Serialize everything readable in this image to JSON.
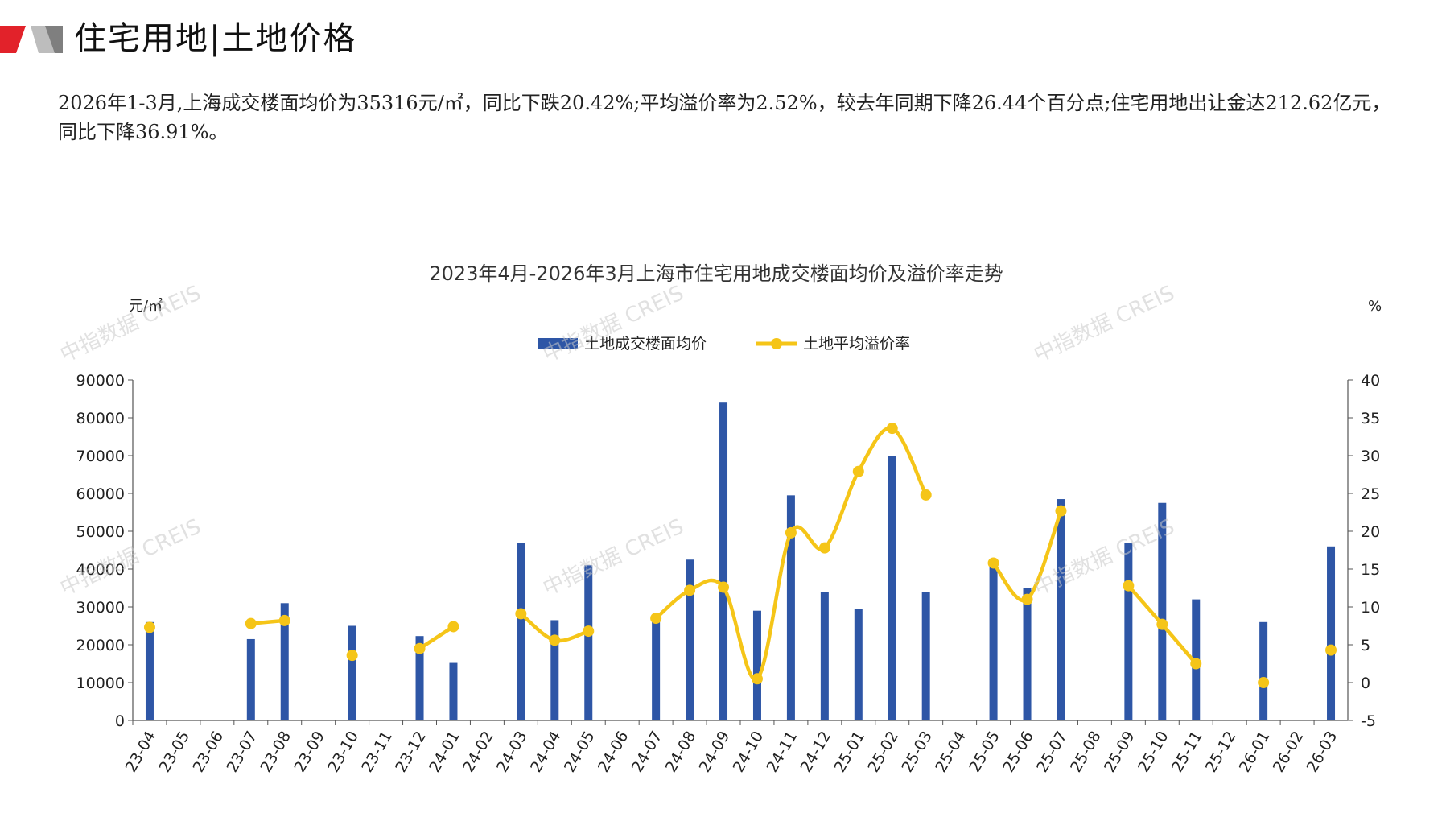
{
  "header": {
    "title": "住宅用地|土地价格"
  },
  "summary": {
    "text": "2026年1-3月,上海成交楼面均价为35316元/㎡，同比下跌20.42%;平均溢价率为2.52%，较去年同期下降26.44个百分点;住宅用地出让金达212.62亿元，同比下降36.91%。"
  },
  "watermark": {
    "text": "中指数据 CREIS"
  },
  "colors": {
    "bar": "#2E56A6",
    "line": "#F5C518",
    "accent_red": "#E2222A",
    "accent_gray": "#7F7F7F"
  },
  "chart_data": {
    "type": "bar",
    "title": "2023年4月-2026年3月上海市住宅用地成交楼面均价及溢价率走势",
    "ylabel_left": "元/㎡",
    "ylabel_right": "%",
    "ylim_left": [
      0,
      90000
    ],
    "ylim_right": [
      -5,
      40
    ],
    "yticks_left": [
      "0",
      "10000",
      "20000",
      "30000",
      "40000",
      "50000",
      "60000",
      "70000",
      "80000",
      "90000"
    ],
    "yticks_right": [
      "-5",
      "0",
      "5",
      "10",
      "15",
      "20",
      "25",
      "30",
      "35",
      "40"
    ],
    "legend_position": "top-center",
    "categories": [
      "23-04",
      "23-05",
      "23-06",
      "23-07",
      "23-08",
      "23-09",
      "23-10",
      "23-11",
      "23-12",
      "24-01",
      "24-02",
      "24-03",
      "24-04",
      "24-05",
      "24-06",
      "24-07",
      "24-08",
      "24-09",
      "24-10",
      "24-11",
      "24-12",
      "25-01",
      "25-02",
      "25-03",
      "25-04",
      "25-05",
      "25-06",
      "25-07",
      "25-08",
      "25-09",
      "25-10",
      "25-11",
      "25-12",
      "26-01",
      "26-02",
      "26-03"
    ],
    "series": [
      {
        "name": "土地成交楼面均价",
        "type": "bar",
        "axis": "left",
        "values": [
          26000,
          null,
          null,
          21500,
          31000,
          null,
          25000,
          null,
          22300,
          15200,
          null,
          47000,
          26500,
          41000,
          null,
          27500,
          42500,
          84000,
          29000,
          59500,
          34000,
          29500,
          70000,
          34000,
          null,
          41500,
          35000,
          58500,
          null,
          47000,
          57500,
          32000,
          null,
          26000,
          null,
          46000
        ]
      },
      {
        "name": "土地平均溢价率",
        "type": "line",
        "axis": "right",
        "values": [
          7.3,
          null,
          null,
          7.8,
          8.2,
          null,
          3.6,
          null,
          4.5,
          7.4,
          null,
          9.1,
          5.6,
          6.8,
          null,
          8.5,
          12.2,
          12.6,
          0.5,
          19.8,
          17.8,
          27.9,
          33.6,
          24.8,
          null,
          15.8,
          11.0,
          22.7,
          null,
          12.8,
          7.7,
          2.5,
          null,
          0.0,
          null,
          4.3
        ]
      }
    ]
  }
}
